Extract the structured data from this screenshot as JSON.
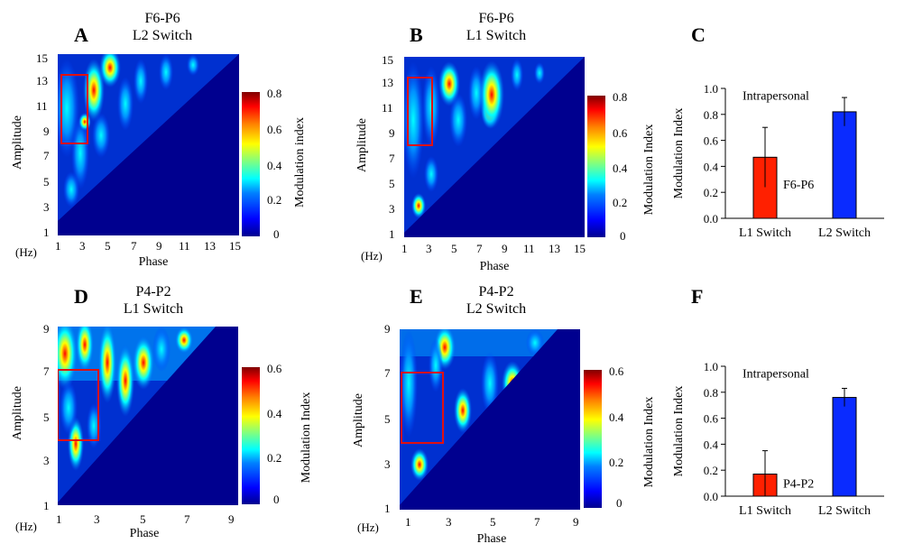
{
  "panels": {
    "A": {
      "letter": "A",
      "title1": "F6-P6",
      "title2": "L2 Switch",
      "cbar_label": "Modulation index",
      "cbar_ticks": [
        "0.8",
        "0.6",
        "0.4",
        "0.2",
        "0"
      ],
      "yticks": [
        "15",
        "13",
        "11",
        "9",
        "7",
        "5",
        "3",
        "1"
      ],
      "xticks": [
        "1",
        "3",
        "5",
        "7",
        "9",
        "11",
        "13",
        "15"
      ]
    },
    "B": {
      "letter": "B",
      "title1": "F6-P6",
      "title2": "L1 Switch",
      "cbar_label": "Modulation Index",
      "cbar_ticks": [
        "0.8",
        "0.6",
        "0.4",
        "0.2",
        "0"
      ],
      "yticks": [
        "15",
        "13",
        "11",
        "9",
        "7",
        "5",
        "3",
        "1"
      ],
      "xticks": [
        "1",
        "3",
        "5",
        "7",
        "9",
        "11",
        "13",
        "15"
      ]
    },
    "C": {
      "letter": "C"
    },
    "D": {
      "letter": "D",
      "title1": "P4-P2",
      "title2": "L1 Switch",
      "cbar_label": "Modulation Index",
      "cbar_ticks": [
        "0.6",
        "0.4",
        "0.2",
        "0"
      ],
      "yticks": [
        "9",
        "7",
        "5",
        "3",
        "1"
      ],
      "xticks": [
        "1",
        "3",
        "5",
        "7",
        "9"
      ]
    },
    "E": {
      "letter": "E",
      "title1": "P4-P2",
      "title2": "L2 Switch",
      "cbar_label": "Modulation Index",
      "cbar_ticks": [
        "0.6",
        "0.4",
        "0.2",
        "0"
      ],
      "yticks": [
        "9",
        "7",
        "5",
        "3",
        "1"
      ],
      "xticks": [
        "1",
        "3",
        "5",
        "7",
        "9"
      ]
    },
    "F": {
      "letter": "F"
    }
  },
  "axes": {
    "amplitude": "Amplitude",
    "phase": "Phase",
    "hz": "(Hz)"
  },
  "chart_data": [
    {
      "panel": "A",
      "type": "heatmap",
      "title": "F6-P6 L2 Switch",
      "xlabel": "Phase",
      "ylabel": "Amplitude",
      "unit": "Hz",
      "x_range": [
        1,
        15
      ],
      "y_range": [
        1,
        15
      ],
      "colorbar": {
        "label": "Modulation index",
        "range": [
          0,
          0.8
        ]
      },
      "highlight_region": {
        "x": [
          1,
          3
        ],
        "y": [
          8,
          13.5
        ]
      }
    },
    {
      "panel": "B",
      "type": "heatmap",
      "title": "F6-P6 L1 Switch",
      "xlabel": "Phase",
      "ylabel": "Amplitude",
      "unit": "Hz",
      "x_range": [
        1,
        15
      ],
      "y_range": [
        1,
        15
      ],
      "colorbar": {
        "label": "Modulation Index",
        "range": [
          0,
          0.8
        ]
      },
      "highlight_region": {
        "x": [
          1,
          3
        ],
        "y": [
          8,
          13.5
        ]
      }
    },
    {
      "panel": "C",
      "type": "bar",
      "categories": [
        "L1 Switch",
        "L2 Switch"
      ],
      "values": [
        0.47,
        0.82
      ],
      "errors": [
        0.23,
        0.11
      ],
      "colors": [
        "#ff2000",
        "#0a2bff"
      ],
      "ylabel": "Modulation Index",
      "ylim": [
        0,
        1.0
      ],
      "yticks": [
        "0.0",
        "0.2",
        "0.4",
        "0.6",
        "0.8",
        "1.0"
      ],
      "annotations": [
        "Intrapersonal",
        "F6-P6"
      ]
    },
    {
      "panel": "D",
      "type": "heatmap",
      "title": "P4-P2 L1 Switch",
      "xlabel": "Phase",
      "ylabel": "Amplitude",
      "unit": "Hz",
      "x_range": [
        1,
        9
      ],
      "y_range": [
        1,
        9
      ],
      "colorbar": {
        "label": "Modulation Index",
        "range": [
          0,
          0.6
        ]
      },
      "highlight_region": {
        "x": [
          1,
          3
        ],
        "y": [
          4,
          7
        ]
      }
    },
    {
      "panel": "E",
      "type": "heatmap",
      "title": "P4-P2 L2 Switch",
      "xlabel": "Phase",
      "ylabel": "Amplitude",
      "unit": "Hz",
      "x_range": [
        1,
        9
      ],
      "y_range": [
        1,
        9
      ],
      "colorbar": {
        "label": "Modulation Index",
        "range": [
          0,
          0.6
        ]
      },
      "highlight_region": {
        "x": [
          1,
          3
        ],
        "y": [
          4,
          7
        ]
      }
    },
    {
      "panel": "F",
      "type": "bar",
      "categories": [
        "L1 Switch",
        "L2 Switch"
      ],
      "values": [
        0.17,
        0.76
      ],
      "errors": [
        0.18,
        0.07
      ],
      "colors": [
        "#ff2000",
        "#0a2bff"
      ],
      "ylabel": "Modulation Index",
      "ylim": [
        0,
        1.0
      ],
      "yticks": [
        "0.0",
        "0.2",
        "0.4",
        "0.6",
        "0.8",
        "1.0"
      ],
      "annotations": [
        "Intrapersonal",
        "P4-P2"
      ]
    }
  ]
}
